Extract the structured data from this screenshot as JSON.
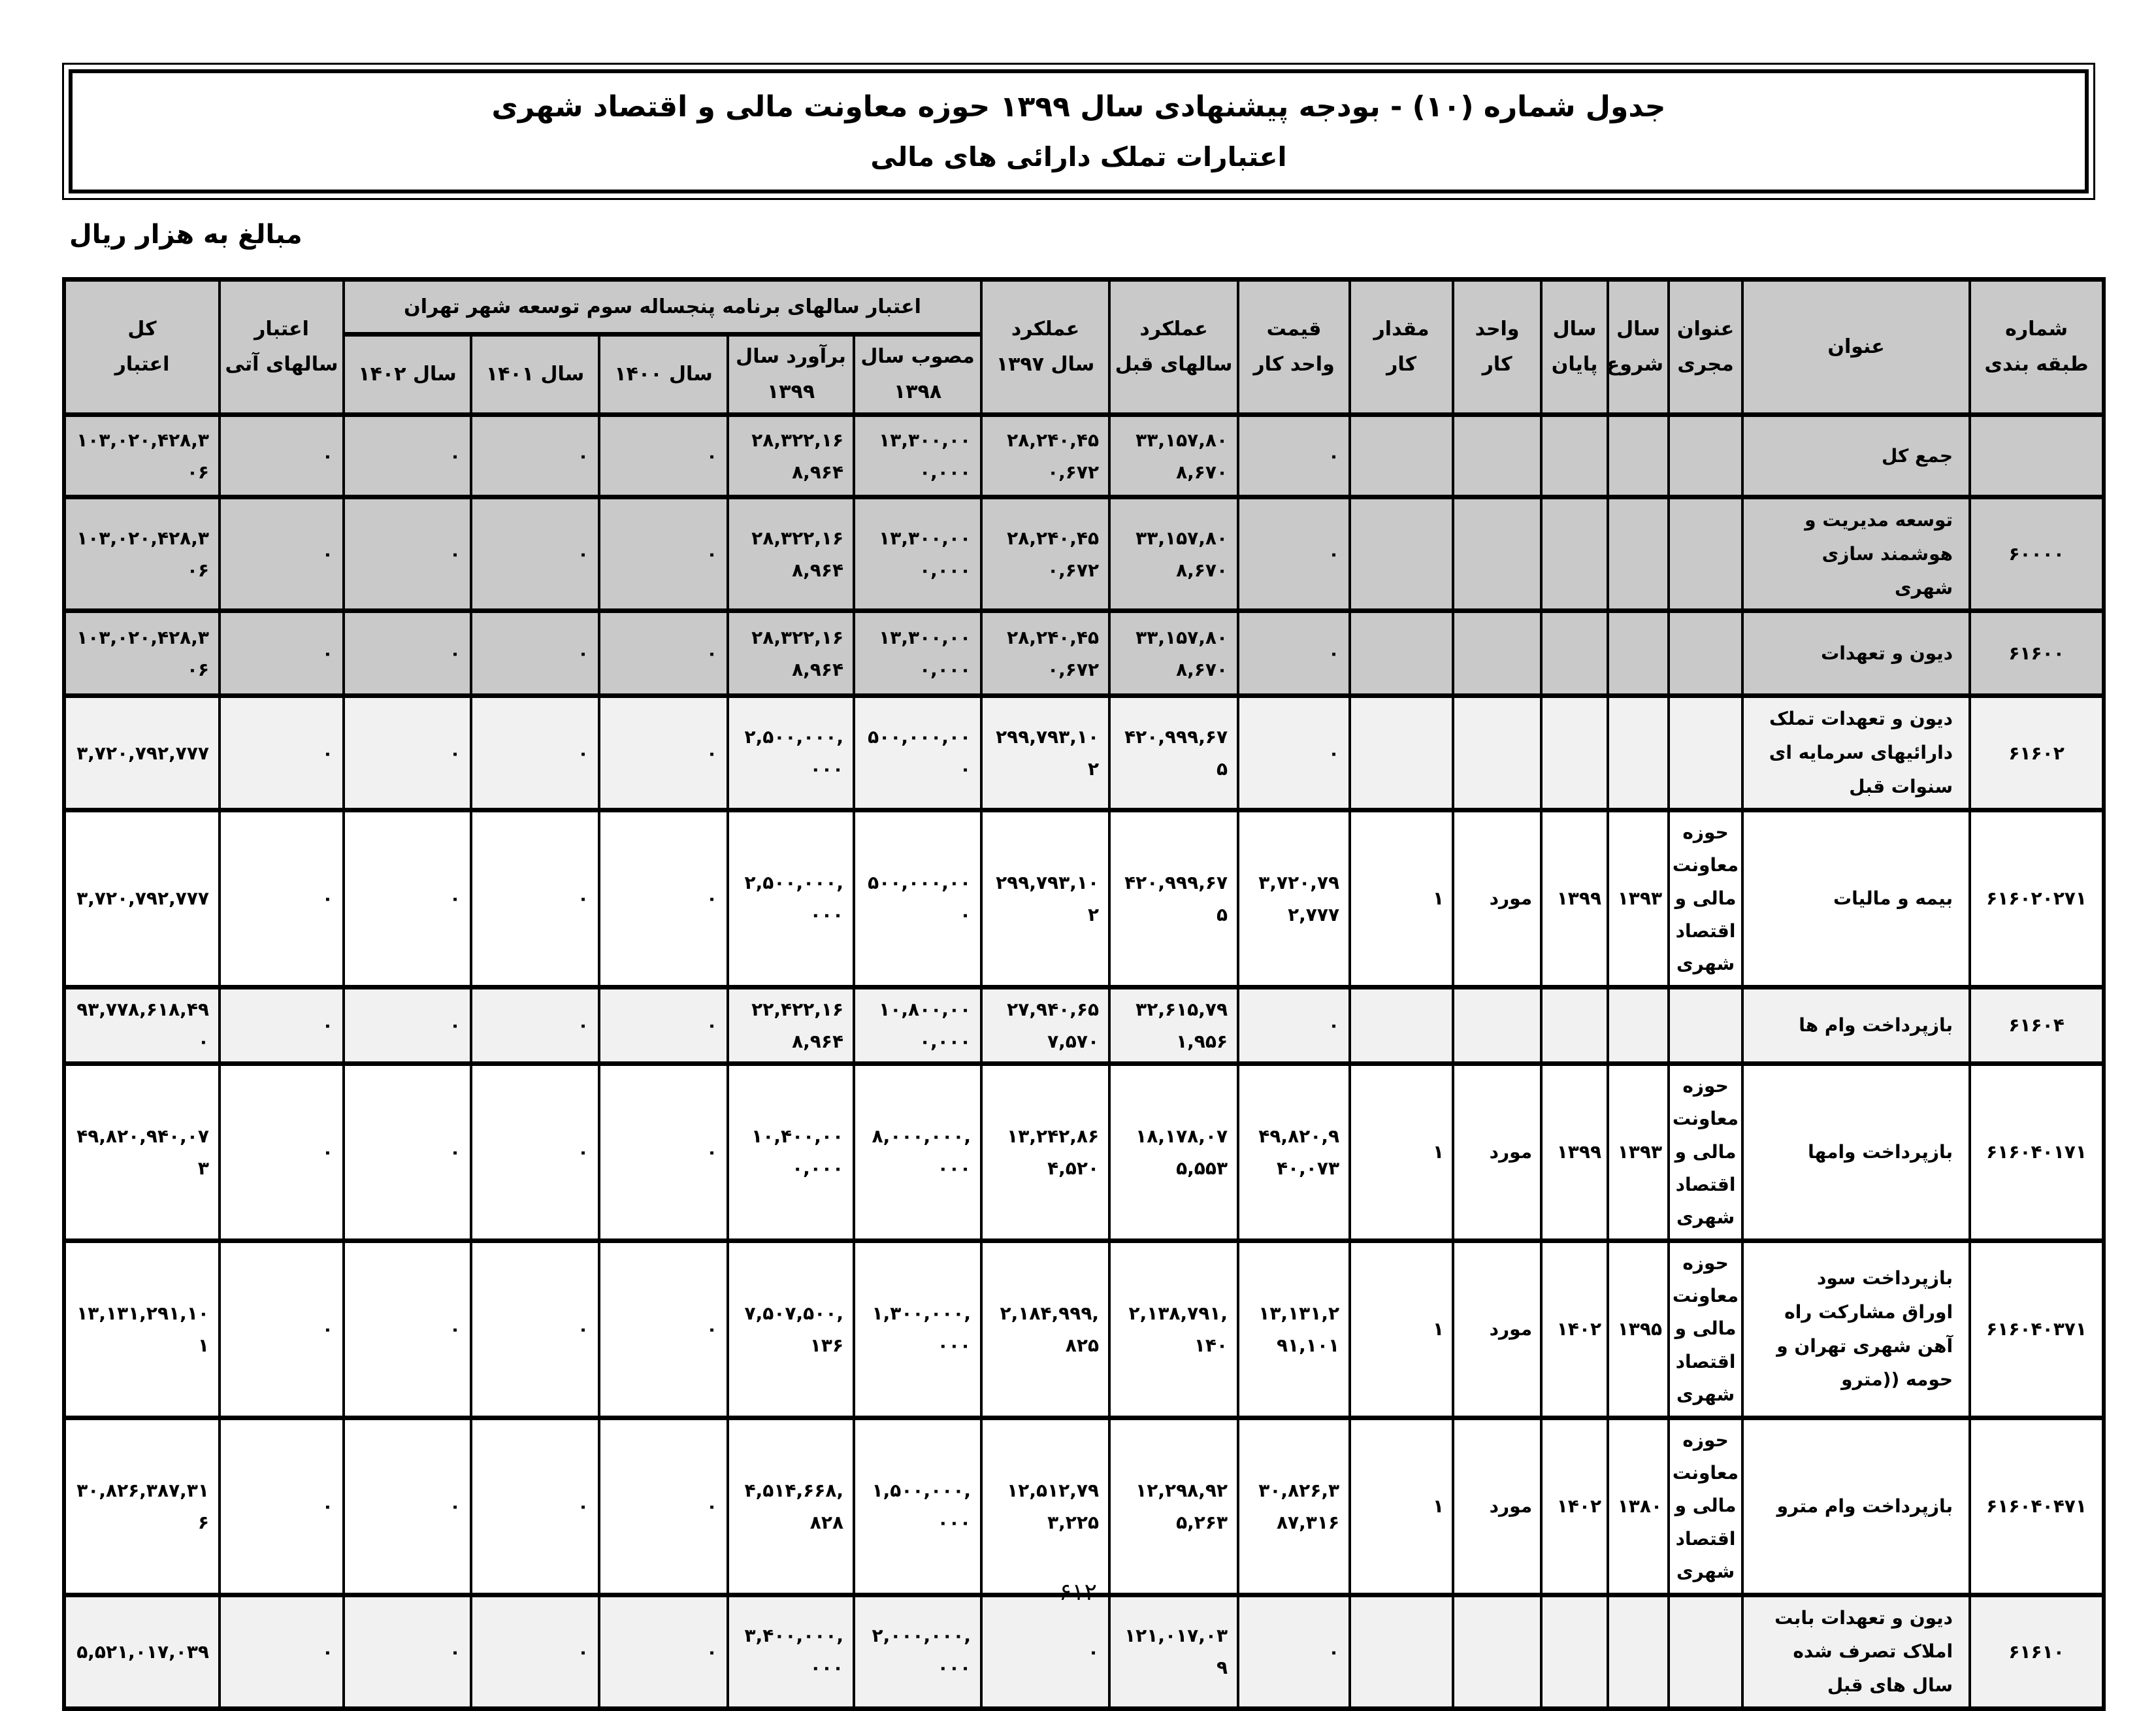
{
  "page": {
    "title_line1": "جدول شماره (۱۰) - بودجه پیشنهادی سال ۱۳۹۹ حوزه معاونت مالی و اقتصاد شهری",
    "title_line2": "اعتبارات تملک دارائی های مالی",
    "unit_note": "مبالغ به هزار ریال",
    "page_number": "۶۱۲"
  },
  "table": {
    "headers": {
      "code": "شماره\nطبقه بندی",
      "title": "عنوان",
      "executor": "عنوان\nمجری",
      "start_year": "سال\nشروع",
      "end_year": "سال\nپایان",
      "work_unit": "واحد\nکار",
      "work_qty": "مقدار\nکار",
      "unit_price": "قیمت\nواحد کار",
      "perf_prev_years": "عملکرد\nسالهای قبل",
      "perf_1397": "عملکرد\nسال ۱۳۹۷",
      "program_group": "اعتبار سالهای برنامه پنجساله سوم توسعه شهر تهران",
      "approved_1398": "مصوب سال\n۱۳۹۸",
      "estimate_1399": "برآورد سال\n۱۳۹۹",
      "y1400": "سال ۱۴۰۰",
      "y1401": "سال ۱۴۰۱",
      "y1402": "سال ۱۴۰۲",
      "future_years": "اعتبار\nسالهای آتی",
      "total_credit": "کل\nاعتبار"
    },
    "rows": [
      {
        "code": "",
        "title": "جمع کل",
        "executor": "",
        "start_year": "",
        "end_year": "",
        "work_unit": "",
        "work_qty": "",
        "unit_price": "۰",
        "perf_prev_years": "۳۳,۱۵۷,۸۰۸,۶۷۰",
        "perf_1397": "۲۸,۲۴۰,۴۵۰,۶۷۲",
        "approved_1398": "۱۳,۳۰۰,۰۰۰,۰۰۰",
        "estimate_1399": "۲۸,۳۲۲,۱۶۸,۹۶۴",
        "y1400": "۰",
        "y1401": "۰",
        "y1402": "۰",
        "future_years": "۰",
        "total_credit": "۱۰۳,۰۲۰,۴۲۸,۳۰۶",
        "shade": "dark"
      },
      {
        "code": "۶۰۰۰۰",
        "title": "توسعه مدیریت و هوشمند سازی شهری",
        "executor": "",
        "start_year": "",
        "end_year": "",
        "work_unit": "",
        "work_qty": "",
        "unit_price": "۰",
        "perf_prev_years": "۳۳,۱۵۷,۸۰۸,۶۷۰",
        "perf_1397": "۲۸,۲۴۰,۴۵۰,۶۷۲",
        "approved_1398": "۱۳,۳۰۰,۰۰۰,۰۰۰",
        "estimate_1399": "۲۸,۳۲۲,۱۶۸,۹۶۴",
        "y1400": "۰",
        "y1401": "۰",
        "y1402": "۰",
        "future_years": "۰",
        "total_credit": "۱۰۳,۰۲۰,۴۲۸,۳۰۶",
        "shade": "dark"
      },
      {
        "code": "۶۱۶۰۰",
        "title": "دیون و تعهدات",
        "executor": "",
        "start_year": "",
        "end_year": "",
        "work_unit": "",
        "work_qty": "",
        "unit_price": "۰",
        "perf_prev_years": "۳۳,۱۵۷,۸۰۸,۶۷۰",
        "perf_1397": "۲۸,۲۴۰,۴۵۰,۶۷۲",
        "approved_1398": "۱۳,۳۰۰,۰۰۰,۰۰۰",
        "estimate_1399": "۲۸,۳۲۲,۱۶۸,۹۶۴",
        "y1400": "۰",
        "y1401": "۰",
        "y1402": "۰",
        "future_years": "۰",
        "total_credit": "۱۰۳,۰۲۰,۴۲۸,۳۰۶",
        "shade": "dark"
      },
      {
        "code": "۶۱۶۰۲",
        "title": "دیون و تعهدات تملک دارائیهای سرمایه ای سنوات قبل",
        "executor": "",
        "start_year": "",
        "end_year": "",
        "work_unit": "",
        "work_qty": "",
        "unit_price": "۰",
        "perf_prev_years": "۴۲۰,۹۹۹,۶۷۵",
        "perf_1397": "۲۹۹,۷۹۳,۱۰۲",
        "approved_1398": "۵۰۰,۰۰۰,۰۰۰",
        "estimate_1399": "۲,۵۰۰,۰۰۰,۰۰۰",
        "y1400": "۰",
        "y1401": "۰",
        "y1402": "۰",
        "future_years": "۰",
        "total_credit": "۳,۷۲۰,۷۹۲,۷۷۷",
        "shade": "light"
      },
      {
        "code": "۶۱۶۰۲۰۲۷۱",
        "title": "بیمه و مالیات",
        "executor": "حوزه معاونت مالی و اقتصاد شهری",
        "start_year": "۱۳۹۳",
        "end_year": "۱۳۹۹",
        "work_unit": "مورد",
        "work_qty": "۱",
        "unit_price": "۳,۷۲۰,۷۹۲,۷۷۷",
        "perf_prev_years": "۴۲۰,۹۹۹,۶۷۵",
        "perf_1397": "۲۹۹,۷۹۳,۱۰۲",
        "approved_1398": "۵۰۰,۰۰۰,۰۰۰",
        "estimate_1399": "۲,۵۰۰,۰۰۰,۰۰۰",
        "y1400": "۰",
        "y1401": "۰",
        "y1402": "۰",
        "future_years": "۰",
        "total_credit": "۳,۷۲۰,۷۹۲,۷۷۷",
        "shade": "white"
      },
      {
        "code": "۶۱۶۰۴",
        "title": "بازپرداخت وام ها",
        "executor": "",
        "start_year": "",
        "end_year": "",
        "work_unit": "",
        "work_qty": "",
        "unit_price": "۰",
        "perf_prev_years": "۳۲,۶۱۵,۷۹۱,۹۵۶",
        "perf_1397": "۲۷,۹۴۰,۶۵۷,۵۷۰",
        "approved_1398": "۱۰,۸۰۰,۰۰۰,۰۰۰",
        "estimate_1399": "۲۲,۴۲۲,۱۶۸,۹۶۴",
        "y1400": "۰",
        "y1401": "۰",
        "y1402": "۰",
        "future_years": "۰",
        "total_credit": "۹۳,۷۷۸,۶۱۸,۴۹۰",
        "shade": "light"
      },
      {
        "code": "۶۱۶۰۴۰۱۷۱",
        "title": "بازپرداخت وامها",
        "executor": "حوزه معاونت مالی و اقتصاد شهری",
        "start_year": "۱۳۹۳",
        "end_year": "۱۳۹۹",
        "work_unit": "مورد",
        "work_qty": "۱",
        "unit_price": "۴۹,۸۲۰,۹۴۰,۰۷۳",
        "perf_prev_years": "۱۸,۱۷۸,۰۷۵,۵۵۳",
        "perf_1397": "۱۳,۲۴۲,۸۶۴,۵۲۰",
        "approved_1398": "۸,۰۰۰,۰۰۰,۰۰۰",
        "estimate_1399": "۱۰,۴۰۰,۰۰۰,۰۰۰",
        "y1400": "۰",
        "y1401": "۰",
        "y1402": "۰",
        "future_years": "۰",
        "total_credit": "۴۹,۸۲۰,۹۴۰,۰۷۳",
        "shade": "white"
      },
      {
        "code": "۶۱۶۰۴۰۳۷۱",
        "title": "بازپرداخت سود اوراق مشارکت راه آهن شهری تهران و حومه ((مترو",
        "executor": "حوزه معاونت مالی و اقتصاد شهری",
        "start_year": "۱۳۹۵",
        "end_year": "۱۴۰۲",
        "work_unit": "مورد",
        "work_qty": "۱",
        "unit_price": "۱۳,۱۳۱,۲۹۱,۱۰۱",
        "perf_prev_years": "۲,۱۳۸,۷۹۱,۱۴۰",
        "perf_1397": "۲,۱۸۴,۹۹۹,۸۲۵",
        "approved_1398": "۱,۳۰۰,۰۰۰,۰۰۰",
        "estimate_1399": "۷,۵۰۷,۵۰۰,۱۳۶",
        "y1400": "۰",
        "y1401": "۰",
        "y1402": "۰",
        "future_years": "۰",
        "total_credit": "۱۳,۱۳۱,۲۹۱,۱۰۱",
        "shade": "white"
      },
      {
        "code": "۶۱۶۰۴۰۴۷۱",
        "title": "بازپرداخت وام مترو",
        "executor": "حوزه معاونت مالی و اقتصاد شهری",
        "start_year": "۱۳۸۰",
        "end_year": "۱۴۰۲",
        "work_unit": "مورد",
        "work_qty": "۱",
        "unit_price": "۳۰,۸۲۶,۳۸۷,۳۱۶",
        "perf_prev_years": "۱۲,۲۹۸,۹۲۵,۲۶۳",
        "perf_1397": "۱۲,۵۱۲,۷۹۳,۲۲۵",
        "approved_1398": "۱,۵۰۰,۰۰۰,۰۰۰",
        "estimate_1399": "۴,۵۱۴,۶۶۸,۸۲۸",
        "y1400": "۰",
        "y1401": "۰",
        "y1402": "۰",
        "future_years": "۰",
        "total_credit": "۳۰,۸۲۶,۳۸۷,۳۱۶",
        "shade": "white"
      },
      {
        "code": "۶۱۶۱۰",
        "title": "دیون و تعهدات بابت املاک تصرف شده سال های قبل",
        "executor": "",
        "start_year": "",
        "end_year": "",
        "work_unit": "",
        "work_qty": "",
        "unit_price": "۰",
        "perf_prev_years": "۱۲۱,۰۱۷,۰۳۹",
        "perf_1397": "۰",
        "approved_1398": "۲,۰۰۰,۰۰۰,۰۰۰",
        "estimate_1399": "۳,۴۰۰,۰۰۰,۰۰۰",
        "y1400": "۰",
        "y1401": "۰",
        "y1402": "۰",
        "future_years": "۰",
        "total_credit": "۵,۵۲۱,۰۱۷,۰۳۹",
        "shade": "light"
      }
    ]
  }
}
